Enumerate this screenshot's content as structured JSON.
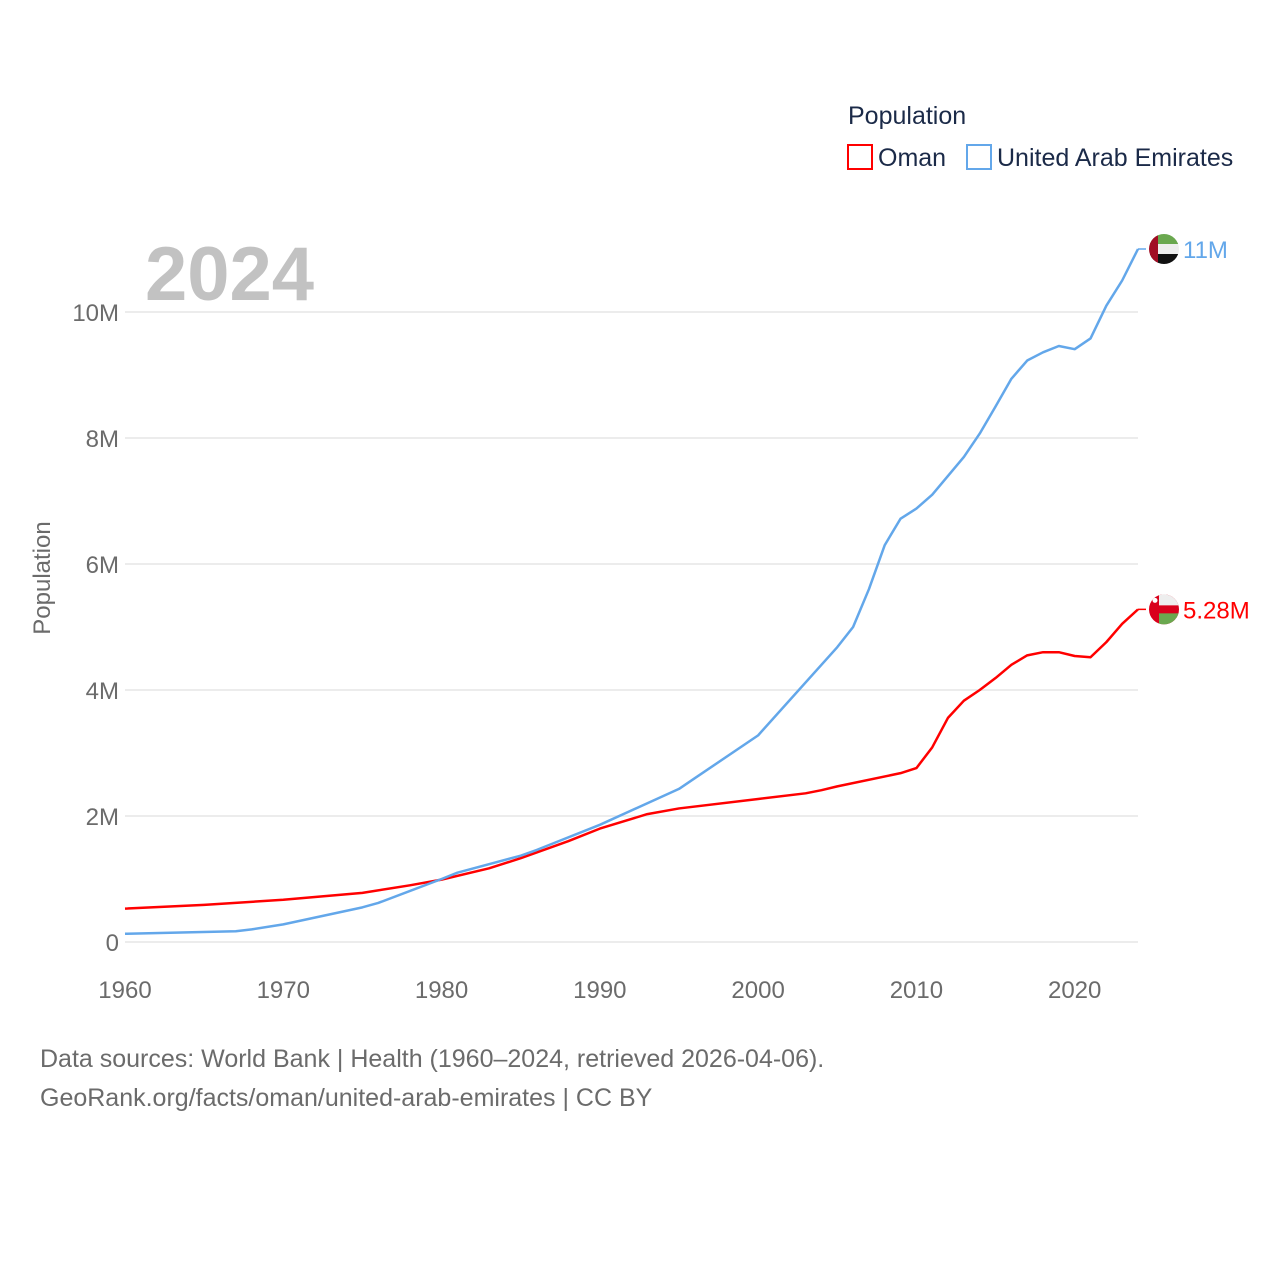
{
  "chart_data": {
    "type": "line",
    "ylabel": "Population",
    "xlabel": "",
    "year_label": "2024",
    "legend_title": "Population",
    "legend_position": "top-right",
    "xlim": [
      1960,
      2024
    ],
    "ylim": [
      0,
      10000000
    ],
    "x_ticks": [
      "1960",
      "1970",
      "1980",
      "1990",
      "2000",
      "2010",
      "2020"
    ],
    "x_tick_values": [
      1960,
      1970,
      1980,
      1990,
      2000,
      2010,
      2020
    ],
    "y_ticks": [
      "0",
      "2M",
      "4M",
      "6M",
      "8M",
      "10M"
    ],
    "y_tick_values": [
      0,
      2000000,
      4000000,
      6000000,
      8000000,
      10000000
    ],
    "grid": true,
    "series": [
      {
        "name": "Oman",
        "color": "#ff0000",
        "end_label": "5.28M",
        "flag": "oman-flag",
        "points": [
          [
            1960,
            0.53
          ],
          [
            1965,
            0.59
          ],
          [
            1970,
            0.67
          ],
          [
            1975,
            0.78
          ],
          [
            1978,
            0.9
          ],
          [
            1980,
            0.99
          ],
          [
            1983,
            1.17
          ],
          [
            1985,
            1.33
          ],
          [
            1988,
            1.6
          ],
          [
            1990,
            1.8
          ],
          [
            1993,
            2.03
          ],
          [
            1995,
            2.12
          ],
          [
            2000,
            2.27
          ],
          [
            2003,
            2.36
          ],
          [
            2004,
            2.41
          ],
          [
            2005,
            2.47
          ],
          [
            2009,
            2.68
          ],
          [
            2010,
            2.76
          ],
          [
            2011,
            3.09
          ],
          [
            2012,
            3.56
          ],
          [
            2013,
            3.83
          ],
          [
            2014,
            4.0
          ],
          [
            2015,
            4.19
          ],
          [
            2016,
            4.4
          ],
          [
            2017,
            4.55
          ],
          [
            2018,
            4.6
          ],
          [
            2019,
            4.6
          ],
          [
            2020,
            4.54
          ],
          [
            2021,
            4.52
          ],
          [
            2022,
            4.76
          ],
          [
            2023,
            5.05
          ],
          [
            2024,
            5.28
          ]
        ]
      },
      {
        "name": "United Arab Emirates",
        "color": "#63a7ea",
        "end_label": "11M",
        "flag": "uae-flag",
        "points": [
          [
            1960,
            0.13
          ],
          [
            1967,
            0.17
          ],
          [
            1968,
            0.2
          ],
          [
            1970,
            0.28
          ],
          [
            1975,
            0.55
          ],
          [
            1976,
            0.62
          ],
          [
            1980,
            1.0
          ],
          [
            1981,
            1.1
          ],
          [
            1985,
            1.37
          ],
          [
            1986,
            1.46
          ],
          [
            1990,
            1.86
          ],
          [
            1995,
            2.43
          ],
          [
            1996,
            2.6
          ],
          [
            2000,
            3.28
          ],
          [
            2005,
            4.68
          ],
          [
            2006,
            5.0
          ],
          [
            2007,
            5.6
          ],
          [
            2008,
            6.3
          ],
          [
            2009,
            6.72
          ],
          [
            2010,
            6.88
          ],
          [
            2011,
            7.1
          ],
          [
            2012,
            7.4
          ],
          [
            2013,
            7.7
          ],
          [
            2014,
            8.07
          ],
          [
            2015,
            8.5
          ],
          [
            2016,
            8.94
          ],
          [
            2017,
            9.23
          ],
          [
            2018,
            9.36
          ],
          [
            2019,
            9.46
          ],
          [
            2020,
            9.41
          ],
          [
            2021,
            9.58
          ],
          [
            2022,
            10.1
          ],
          [
            2023,
            10.5
          ],
          [
            2024,
            11.0
          ]
        ]
      }
    ]
  },
  "footer": {
    "line1": "Data sources: World Bank | Health (1960–2024, retrieved 2026-04-06).",
    "line2": "GeoRank.org/facts/oman/united-arab-emirates | CC BY"
  }
}
